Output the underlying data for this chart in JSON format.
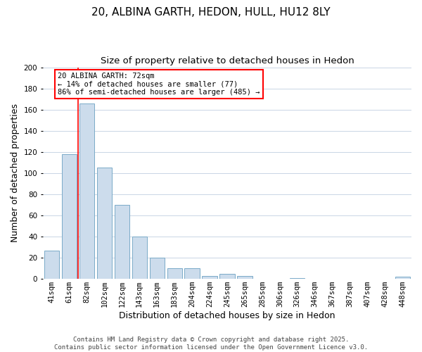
{
  "title": "20, ALBINA GARTH, HEDON, HULL, HU12 8LY",
  "subtitle": "Size of property relative to detached houses in Hedon",
  "xlabel": "Distribution of detached houses by size in Hedon",
  "ylabel": "Number of detached properties",
  "bar_labels": [
    "41sqm",
    "61sqm",
    "82sqm",
    "102sqm",
    "122sqm",
    "143sqm",
    "163sqm",
    "183sqm",
    "204sqm",
    "224sqm",
    "245sqm",
    "265sqm",
    "285sqm",
    "306sqm",
    "326sqm",
    "346sqm",
    "367sqm",
    "387sqm",
    "407sqm",
    "428sqm",
    "448sqm"
  ],
  "bar_values": [
    27,
    118,
    166,
    105,
    70,
    40,
    20,
    10,
    10,
    3,
    5,
    3,
    0,
    0,
    1,
    0,
    0,
    0,
    0,
    0,
    2
  ],
  "bar_color": "#ccdcec",
  "bar_edge_color": "#7aaac8",
  "ylim": [
    0,
    200
  ],
  "yticks": [
    0,
    20,
    40,
    60,
    80,
    100,
    120,
    140,
    160,
    180,
    200
  ],
  "property_label": "20 ALBINA GARTH: 72sqm",
  "pct_smaller": 14,
  "n_smaller": 77,
  "pct_larger": 86,
  "n_larger": 485,
  "vline_bin_index": 1,
  "footer_line1": "Contains HM Land Registry data © Crown copyright and database right 2025.",
  "footer_line2": "Contains public sector information licensed under the Open Government Licence v3.0.",
  "background_color": "#ffffff",
  "grid_color": "#c0cfe0",
  "title_fontsize": 11,
  "subtitle_fontsize": 9.5,
  "tick_fontsize": 7.5,
  "label_fontsize": 9,
  "footer_fontsize": 6.5
}
